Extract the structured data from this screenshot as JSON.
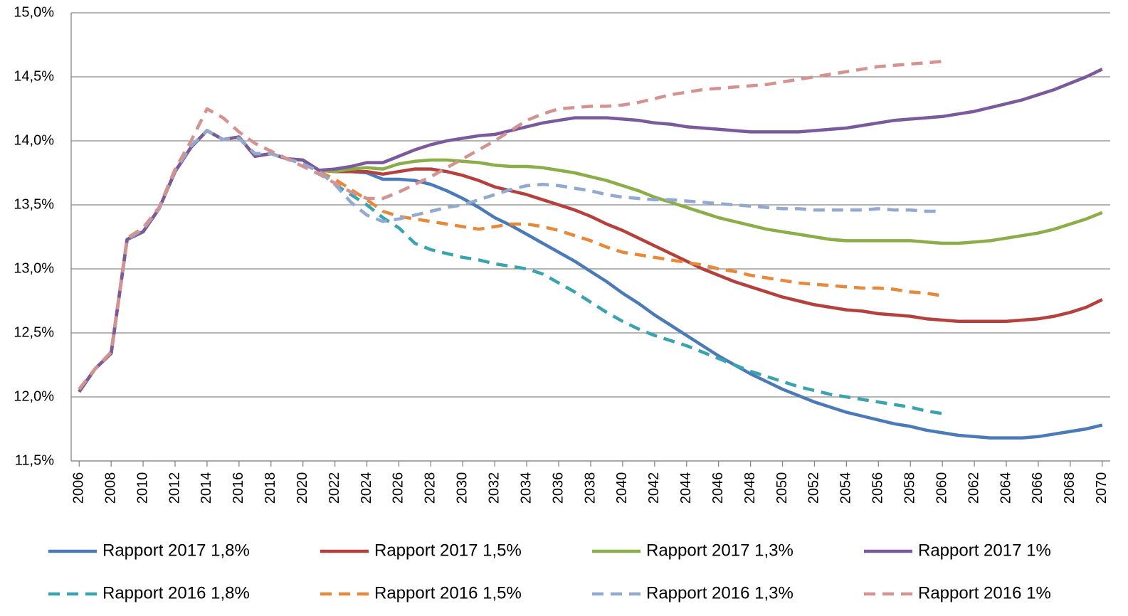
{
  "chart_data": {
    "type": "line",
    "x": [
      2006,
      2007,
      2008,
      2009,
      2010,
      2011,
      2012,
      2013,
      2014,
      2015,
      2016,
      2017,
      2018,
      2019,
      2020,
      2021,
      2022,
      2023,
      2024,
      2025,
      2026,
      2027,
      2028,
      2029,
      2030,
      2031,
      2032,
      2033,
      2034,
      2035,
      2036,
      2037,
      2038,
      2039,
      2040,
      2041,
      2042,
      2043,
      2044,
      2045,
      2046,
      2047,
      2048,
      2049,
      2050,
      2051,
      2052,
      2053,
      2054,
      2055,
      2056,
      2057,
      2058,
      2059,
      2060,
      2061,
      2062,
      2063,
      2064,
      2065,
      2066,
      2067,
      2068,
      2069,
      2070
    ],
    "xlim": [
      2005.5,
      2070.5
    ],
    "xticks": [
      2006,
      2008,
      2010,
      2012,
      2014,
      2016,
      2018,
      2020,
      2022,
      2024,
      2026,
      2028,
      2030,
      2032,
      2034,
      2036,
      2038,
      2040,
      2042,
      2044,
      2046,
      2048,
      2050,
      2052,
      2054,
      2056,
      2058,
      2060,
      2062,
      2064,
      2066,
      2068,
      2070
    ],
    "ylim": [
      11.5,
      15.0
    ],
    "yticks": [
      {
        "value": 11.5,
        "label": "11,5%"
      },
      {
        "value": 12.0,
        "label": "12,0%"
      },
      {
        "value": 12.5,
        "label": "12,5%"
      },
      {
        "value": 13.0,
        "label": "13,0%"
      },
      {
        "value": 13.5,
        "label": "13,5%"
      },
      {
        "value": 14.0,
        "label": "14,0%"
      },
      {
        "value": 14.5,
        "label": "14,5%"
      },
      {
        "value": 15.0,
        "label": "15,0%"
      }
    ],
    "grid": true,
    "legend": "bottom",
    "series": [
      {
        "name": "Rapport 2017 1,8%",
        "color": "#4a7ab8",
        "dashed": false,
        "values": [
          12.04,
          12.22,
          12.34,
          13.23,
          13.29,
          13.47,
          13.76,
          13.95,
          14.08,
          14.01,
          14.03,
          13.88,
          13.9,
          13.86,
          13.85,
          13.77,
          13.77,
          13.76,
          13.75,
          13.7,
          13.7,
          13.69,
          13.66,
          13.61,
          13.55,
          13.48,
          13.4,
          13.34,
          13.27,
          13.2,
          13.13,
          13.06,
          12.98,
          12.9,
          12.81,
          12.73,
          12.64,
          12.56,
          12.48,
          12.4,
          12.32,
          12.25,
          12.18,
          12.12,
          12.06,
          12.01,
          11.96,
          11.92,
          11.88,
          11.85,
          11.82,
          11.79,
          11.77,
          11.74,
          11.72,
          11.7,
          11.69,
          11.68,
          11.68,
          11.68,
          11.69,
          11.71,
          11.73,
          11.75,
          11.78
        ]
      },
      {
        "name": "Rapport 2017 1,5%",
        "color": "#b5403c",
        "dashed": false,
        "values": [
          12.04,
          12.22,
          12.34,
          13.23,
          13.29,
          13.47,
          13.76,
          13.95,
          14.08,
          14.01,
          14.03,
          13.88,
          13.9,
          13.86,
          13.85,
          13.77,
          13.76,
          13.76,
          13.76,
          13.74,
          13.76,
          13.78,
          13.78,
          13.76,
          13.73,
          13.69,
          13.64,
          13.61,
          13.58,
          13.54,
          13.5,
          13.46,
          13.41,
          13.35,
          13.3,
          13.24,
          13.18,
          13.12,
          13.06,
          13.0,
          12.95,
          12.9,
          12.86,
          12.82,
          12.78,
          12.75,
          12.72,
          12.7,
          12.68,
          12.67,
          12.65,
          12.64,
          12.63,
          12.61,
          12.6,
          12.59,
          12.59,
          12.59,
          12.59,
          12.6,
          12.61,
          12.63,
          12.66,
          12.7,
          12.76
        ]
      },
      {
        "name": "Rapport 2017 1,3%",
        "color": "#8cae48",
        "dashed": false,
        "values": [
          12.04,
          12.22,
          12.34,
          13.23,
          13.29,
          13.47,
          13.76,
          13.95,
          14.08,
          14.01,
          14.03,
          13.88,
          13.9,
          13.86,
          13.85,
          13.77,
          13.76,
          13.78,
          13.79,
          13.78,
          13.82,
          13.84,
          13.85,
          13.85,
          13.84,
          13.83,
          13.81,
          13.8,
          13.8,
          13.79,
          13.77,
          13.75,
          13.72,
          13.69,
          13.65,
          13.61,
          13.56,
          13.52,
          13.48,
          13.44,
          13.4,
          13.37,
          13.34,
          13.31,
          13.29,
          13.27,
          13.25,
          13.23,
          13.22,
          13.22,
          13.22,
          13.22,
          13.22,
          13.21,
          13.2,
          13.2,
          13.21,
          13.22,
          13.24,
          13.26,
          13.28,
          13.31,
          13.35,
          13.39,
          13.44
        ]
      },
      {
        "name": "Rapport 2017 1%",
        "color": "#7a5a9c",
        "dashed": false,
        "values": [
          12.04,
          12.22,
          12.34,
          13.23,
          13.29,
          13.47,
          13.76,
          13.95,
          14.08,
          14.01,
          14.03,
          13.88,
          13.9,
          13.86,
          13.85,
          13.77,
          13.78,
          13.8,
          13.83,
          13.83,
          13.88,
          13.93,
          13.97,
          14.0,
          14.02,
          14.04,
          14.05,
          14.08,
          14.11,
          14.14,
          14.16,
          14.18,
          14.18,
          14.18,
          14.17,
          14.16,
          14.14,
          14.13,
          14.11,
          14.1,
          14.09,
          14.08,
          14.07,
          14.07,
          14.07,
          14.07,
          14.08,
          14.09,
          14.1,
          14.12,
          14.14,
          14.16,
          14.17,
          14.18,
          14.19,
          14.21,
          14.23,
          14.26,
          14.29,
          14.32,
          14.36,
          14.4,
          14.45,
          14.5,
          14.56
        ]
      },
      {
        "name": "Rapport 2016 1,8%",
        "color": "#3aa3b0",
        "dashed": true,
        "values": [
          12.06,
          12.22,
          12.35,
          13.23,
          13.31,
          13.47,
          13.77,
          13.96,
          14.08,
          14.01,
          14.02,
          13.9,
          13.9,
          13.86,
          13.82,
          13.76,
          13.66,
          13.58,
          13.5,
          13.4,
          13.32,
          13.2,
          13.15,
          13.12,
          13.09,
          13.07,
          13.04,
          13.02,
          13.0,
          12.96,
          12.89,
          12.82,
          12.74,
          12.66,
          12.59,
          12.53,
          12.48,
          12.44,
          12.4,
          12.35,
          12.3,
          12.25,
          12.2,
          12.16,
          12.12,
          12.08,
          12.05,
          12.02,
          12.0,
          11.98,
          11.96,
          11.94,
          11.92,
          11.89,
          11.87,
          null,
          null,
          null,
          null,
          null,
          null,
          null,
          null,
          null,
          null
        ]
      },
      {
        "name": "Rapport 2016 1,5%",
        "color": "#e8893a",
        "dashed": true,
        "values": [
          12.06,
          12.22,
          12.35,
          13.23,
          13.31,
          13.47,
          13.77,
          13.96,
          14.08,
          14.01,
          14.02,
          13.9,
          13.9,
          13.86,
          13.82,
          13.76,
          13.7,
          13.62,
          13.54,
          13.45,
          13.41,
          13.39,
          13.37,
          13.35,
          13.33,
          13.31,
          13.33,
          13.35,
          13.35,
          13.33,
          13.3,
          13.26,
          13.22,
          13.17,
          13.13,
          13.11,
          13.09,
          13.07,
          13.05,
          13.03,
          13.0,
          12.98,
          12.95,
          12.93,
          12.91,
          12.89,
          12.88,
          12.87,
          12.86,
          12.85,
          12.85,
          12.84,
          12.82,
          12.81,
          12.79,
          null,
          null,
          null,
          null,
          null,
          null,
          null,
          null,
          null,
          null
        ]
      },
      {
        "name": "Rapport 2016 1,3%",
        "color": "#92a9d2",
        "dashed": true,
        "values": [
          12.06,
          12.22,
          12.35,
          13.23,
          13.31,
          13.47,
          13.77,
          13.96,
          14.08,
          14.01,
          14.02,
          13.9,
          13.9,
          13.86,
          13.82,
          13.76,
          13.66,
          13.52,
          13.42,
          13.37,
          13.39,
          13.42,
          13.45,
          13.48,
          13.5,
          13.54,
          13.58,
          13.62,
          13.65,
          13.66,
          13.65,
          13.63,
          13.61,
          13.58,
          13.56,
          13.55,
          13.54,
          13.54,
          13.53,
          13.52,
          13.51,
          13.5,
          13.49,
          13.48,
          13.47,
          13.47,
          13.46,
          13.46,
          13.46,
          13.46,
          13.47,
          13.46,
          13.46,
          13.45,
          13.45,
          null,
          null,
          null,
          null,
          null,
          null,
          null,
          null,
          null,
          null
        ]
      },
      {
        "name": "Rapport 2016 1%",
        "color": "#d49290",
        "dashed": true,
        "values": [
          12.06,
          12.22,
          12.35,
          13.24,
          13.32,
          13.48,
          13.78,
          14.0,
          14.25,
          14.18,
          14.07,
          13.98,
          13.92,
          13.86,
          13.8,
          13.74,
          13.67,
          13.6,
          13.55,
          13.55,
          13.6,
          13.66,
          13.72,
          13.79,
          13.86,
          13.93,
          14.0,
          14.08,
          14.16,
          14.21,
          14.25,
          14.26,
          14.27,
          14.27,
          14.28,
          14.3,
          14.33,
          14.36,
          14.38,
          14.4,
          14.41,
          14.42,
          14.43,
          14.44,
          14.46,
          14.48,
          14.5,
          14.52,
          14.54,
          14.56,
          14.58,
          14.59,
          14.6,
          14.61,
          14.62,
          null,
          null,
          null,
          null,
          null,
          null,
          null,
          null,
          null,
          null
        ]
      }
    ]
  }
}
